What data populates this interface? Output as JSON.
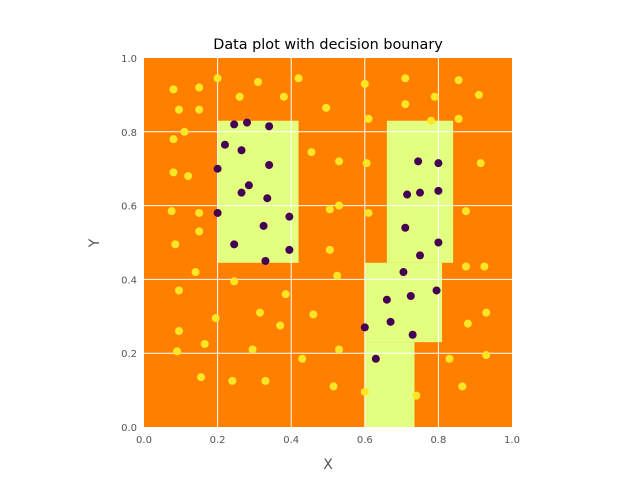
{
  "chart_data": {
    "type": "scatter",
    "title": "Data plot with decision bounary",
    "xlabel": "X",
    "ylabel": "Y",
    "xlim": [
      0,
      1
    ],
    "ylim": [
      0,
      1
    ],
    "xticks": [
      "0.0",
      "0.2",
      "0.4",
      "0.6",
      "0.8",
      "1.0"
    ],
    "yticks": [
      "0.0",
      "0.2",
      "0.4",
      "0.6",
      "0.8",
      "1.0"
    ],
    "grid": true,
    "colors": {
      "background_region": "#ff8000",
      "decision_region": "#e3ff80",
      "class_0_point": "#fde725",
      "class_1_point": "#440154",
      "grid": "#ffffff"
    },
    "decision_regions": [
      {
        "x0": 0.2,
        "x1": 0.42,
        "y0": 0.445,
        "y1": 0.83
      },
      {
        "x0": 0.66,
        "x1": 0.84,
        "y0": 0.445,
        "y1": 0.83
      },
      {
        "x0": 0.6,
        "x1": 0.81,
        "y0": 0.23,
        "y1": 0.445
      },
      {
        "x0": 0.6,
        "x1": 0.735,
        "y0": 0.0,
        "y1": 0.23
      }
    ],
    "series": [
      {
        "class": 0,
        "points": [
          [
            0.08,
            0.915
          ],
          [
            0.2,
            0.945
          ],
          [
            0.26,
            0.895
          ],
          [
            0.31,
            0.935
          ],
          [
            0.15,
            0.92
          ],
          [
            0.095,
            0.86
          ],
          [
            0.15,
            0.86
          ],
          [
            0.11,
            0.8
          ],
          [
            0.08,
            0.78
          ],
          [
            0.38,
            0.895
          ],
          [
            0.42,
            0.945
          ],
          [
            0.495,
            0.865
          ],
          [
            0.6,
            0.93
          ],
          [
            0.61,
            0.835
          ],
          [
            0.71,
            0.945
          ],
          [
            0.71,
            0.875
          ],
          [
            0.79,
            0.895
          ],
          [
            0.78,
            0.83
          ],
          [
            0.855,
            0.835
          ],
          [
            0.855,
            0.94
          ],
          [
            0.91,
            0.9
          ],
          [
            0.915,
            0.715
          ],
          [
            0.08,
            0.69
          ],
          [
            0.12,
            0.68
          ],
          [
            0.075,
            0.585
          ],
          [
            0.15,
            0.58
          ],
          [
            0.15,
            0.53
          ],
          [
            0.085,
            0.495
          ],
          [
            0.2,
            0.58
          ],
          [
            0.455,
            0.745
          ],
          [
            0.53,
            0.72
          ],
          [
            0.605,
            0.715
          ],
          [
            0.505,
            0.59
          ],
          [
            0.53,
            0.6
          ],
          [
            0.61,
            0.58
          ],
          [
            0.505,
            0.48
          ],
          [
            0.525,
            0.41
          ],
          [
            0.875,
            0.585
          ],
          [
            0.875,
            0.435
          ],
          [
            0.925,
            0.435
          ],
          [
            0.14,
            0.42
          ],
          [
            0.095,
            0.37
          ],
          [
            0.245,
            0.395
          ],
          [
            0.385,
            0.36
          ],
          [
            0.195,
            0.295
          ],
          [
            0.315,
            0.31
          ],
          [
            0.37,
            0.275
          ],
          [
            0.46,
            0.305
          ],
          [
            0.095,
            0.26
          ],
          [
            0.165,
            0.225
          ],
          [
            0.09,
            0.205
          ],
          [
            0.295,
            0.21
          ],
          [
            0.43,
            0.185
          ],
          [
            0.53,
            0.21
          ],
          [
            0.155,
            0.135
          ],
          [
            0.24,
            0.125
          ],
          [
            0.33,
            0.125
          ],
          [
            0.515,
            0.11
          ],
          [
            0.6,
            0.095
          ],
          [
            0.74,
            0.085
          ],
          [
            0.88,
            0.28
          ],
          [
            0.93,
            0.31
          ],
          [
            0.83,
            0.185
          ],
          [
            0.93,
            0.195
          ],
          [
            0.865,
            0.11
          ]
        ]
      },
      {
        "class": 1,
        "points": [
          [
            0.245,
            0.82
          ],
          [
            0.28,
            0.825
          ],
          [
            0.34,
            0.815
          ],
          [
            0.22,
            0.765
          ],
          [
            0.265,
            0.75
          ],
          [
            0.2,
            0.7
          ],
          [
            0.34,
            0.71
          ],
          [
            0.285,
            0.655
          ],
          [
            0.265,
            0.635
          ],
          [
            0.335,
            0.62
          ],
          [
            0.2,
            0.58
          ],
          [
            0.395,
            0.57
          ],
          [
            0.325,
            0.545
          ],
          [
            0.245,
            0.495
          ],
          [
            0.395,
            0.48
          ],
          [
            0.33,
            0.45
          ],
          [
            0.745,
            0.72
          ],
          [
            0.8,
            0.715
          ],
          [
            0.715,
            0.63
          ],
          [
            0.75,
            0.635
          ],
          [
            0.8,
            0.64
          ],
          [
            0.71,
            0.54
          ],
          [
            0.8,
            0.5
          ],
          [
            0.75,
            0.465
          ],
          [
            0.705,
            0.42
          ],
          [
            0.795,
            0.37
          ],
          [
            0.66,
            0.345
          ],
          [
            0.725,
            0.355
          ],
          [
            0.6,
            0.27
          ],
          [
            0.67,
            0.285
          ],
          [
            0.73,
            0.25
          ],
          [
            0.63,
            0.185
          ]
        ]
      }
    ]
  }
}
